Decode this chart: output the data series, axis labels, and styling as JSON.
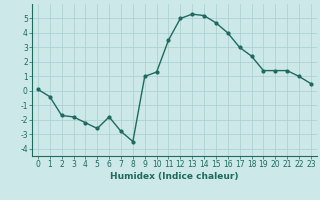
{
  "x": [
    0,
    1,
    2,
    3,
    4,
    5,
    6,
    7,
    8,
    9,
    10,
    11,
    12,
    13,
    14,
    15,
    16,
    17,
    18,
    19,
    20,
    21,
    22,
    23
  ],
  "y": [
    0.1,
    -0.4,
    -1.7,
    -1.8,
    -2.2,
    -2.6,
    -1.8,
    -2.8,
    -3.5,
    1.0,
    1.3,
    3.5,
    5.0,
    5.3,
    5.2,
    4.7,
    4.0,
    3.0,
    2.4,
    1.4,
    1.4,
    1.4,
    1.0,
    0.5
  ],
  "line_color": "#2e7d6e",
  "marker": "o",
  "markersize": 2.0,
  "linewidth": 1.0,
  "xlabel": "Humidex (Indice chaleur)",
  "xlim": [
    -0.5,
    23.5
  ],
  "ylim": [
    -4.5,
    6.0
  ],
  "yticks": [
    -4,
    -3,
    -2,
    -1,
    0,
    1,
    2,
    3,
    4,
    5
  ],
  "xticks": [
    0,
    1,
    2,
    3,
    4,
    5,
    6,
    7,
    8,
    9,
    10,
    11,
    12,
    13,
    14,
    15,
    16,
    17,
    18,
    19,
    20,
    21,
    22,
    23
  ],
  "bg_color": "#cce8e8",
  "grid_color": "#aacece",
  "line_dark": "#1e6b5e",
  "xlabel_fontsize": 6.5,
  "tick_fontsize": 5.5
}
